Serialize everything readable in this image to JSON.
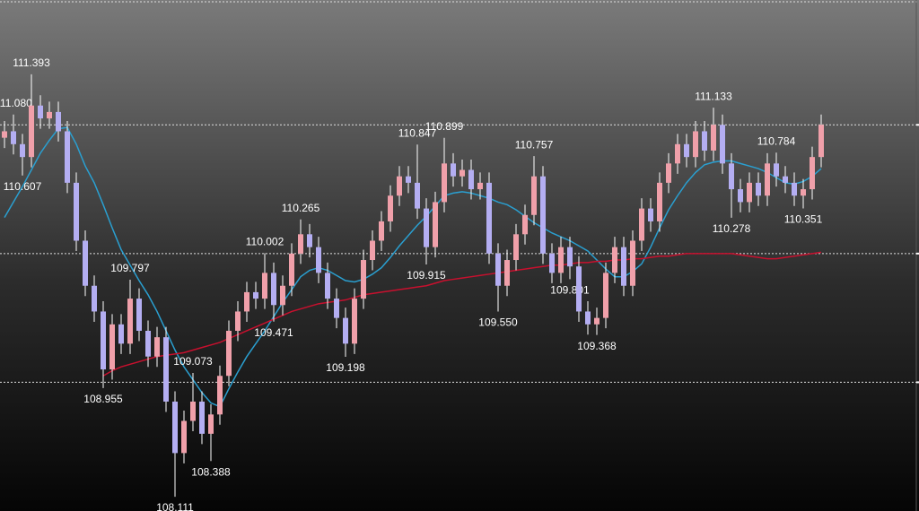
{
  "chart_data": {
    "type": "candlestick",
    "ylim": [
      108.0,
      111.97
    ],
    "yticks": [
      109,
      110,
      111
    ],
    "grid": true,
    "up_color": "#f0a0aa",
    "down_color": "#b4aef2",
    "wick_color": "#ffffff",
    "open": [
      110.9,
      110.95,
      110.85,
      110.75,
      111.15,
      111.05,
      111.1,
      110.95,
      110.55,
      110.1,
      109.75,
      109.55,
      109.1,
      109.45,
      109.3,
      109.65,
      109.4,
      109.2,
      109.35,
      108.85,
      108.45,
      108.7,
      108.85,
      108.6,
      108.75,
      109.05,
      109.4,
      109.55,
      109.7,
      109.65,
      109.85,
      109.6,
      109.75,
      110.0,
      110.15,
      110.05,
      109.85,
      109.65,
      109.5,
      109.3,
      109.65,
      109.95,
      110.1,
      110.25,
      110.45,
      110.6,
      110.55,
      110.35,
      110.05,
      110.4,
      110.7,
      110.6,
      110.65,
      110.5,
      110.55,
      110.0,
      109.75,
      109.95,
      110.15,
      110.3,
      110.6,
      110.0,
      109.85,
      110.05,
      109.9,
      109.55,
      109.45,
      109.5,
      109.85,
      110.05,
      109.75,
      110.1,
      110.35,
      110.25,
      110.55,
      110.7,
      110.85,
      110.75,
      110.95,
      110.8,
      111.0,
      110.7,
      110.5,
      110.4,
      110.55,
      110.45,
      110.7,
      110.6,
      110.55,
      110.45,
      110.5,
      110.75
    ],
    "high": [
      111.03,
      111.08,
      110.93,
      111.393,
      111.23,
      111.18,
      111.18,
      111.03,
      110.63,
      110.18,
      109.83,
      109.63,
      109.53,
      109.53,
      109.797,
      109.73,
      109.48,
      109.43,
      109.43,
      108.93,
      108.78,
      109.073,
      108.93,
      108.83,
      109.13,
      109.48,
      109.63,
      109.78,
      109.78,
      110.002,
      109.93,
      109.83,
      110.08,
      110.265,
      110.23,
      110.13,
      109.93,
      109.73,
      109.58,
      109.73,
      110.03,
      110.18,
      110.33,
      110.53,
      110.68,
      110.68,
      110.847,
      110.43,
      110.48,
      110.899,
      110.78,
      110.73,
      110.73,
      110.63,
      110.63,
      110.08,
      110.03,
      110.23,
      110.38,
      110.757,
      110.68,
      110.08,
      110.13,
      110.13,
      109.98,
      109.63,
      109.58,
      109.93,
      110.13,
      110.13,
      110.18,
      110.43,
      110.43,
      110.63,
      110.78,
      110.93,
      110.93,
      111.03,
      111.03,
      111.133,
      111.08,
      110.78,
      110.58,
      110.63,
      110.63,
      110.78,
      110.784,
      110.68,
      110.63,
      110.58,
      110.83,
      111.08
    ],
    "low": [
      110.82,
      110.77,
      110.607,
      110.67,
      110.97,
      110.97,
      110.87,
      110.47,
      110.02,
      109.67,
      109.47,
      108.955,
      109.02,
      109.22,
      109.22,
      109.32,
      109.12,
      109.12,
      108.77,
      108.111,
      108.37,
      108.62,
      108.52,
      108.388,
      108.67,
      108.97,
      109.32,
      109.47,
      109.57,
      109.57,
      109.471,
      109.52,
      109.67,
      109.92,
      109.97,
      109.77,
      109.57,
      109.42,
      109.198,
      109.22,
      109.57,
      109.87,
      110.02,
      110.17,
      110.37,
      110.47,
      110.27,
      109.915,
      109.97,
      110.32,
      110.52,
      110.52,
      110.42,
      110.42,
      109.92,
      109.55,
      109.67,
      109.87,
      110.07,
      110.22,
      109.92,
      109.77,
      109.77,
      109.801,
      109.47,
      109.37,
      109.368,
      109.42,
      109.77,
      109.67,
      109.67,
      110.02,
      110.17,
      110.17,
      110.47,
      110.62,
      110.67,
      110.67,
      110.72,
      110.72,
      110.62,
      110.278,
      110.32,
      110.32,
      110.37,
      110.37,
      110.52,
      110.47,
      110.37,
      110.351,
      110.42,
      110.67
    ],
    "close": [
      110.95,
      110.85,
      110.75,
      111.15,
      111.05,
      111.1,
      110.95,
      110.55,
      110.1,
      109.75,
      109.55,
      109.1,
      109.45,
      109.3,
      109.65,
      109.4,
      109.2,
      109.35,
      108.85,
      108.45,
      108.7,
      108.85,
      108.6,
      108.75,
      109.05,
      109.4,
      109.55,
      109.7,
      109.65,
      109.85,
      109.6,
      109.75,
      110.0,
      110.15,
      110.05,
      109.85,
      109.65,
      109.5,
      109.3,
      109.65,
      109.95,
      110.1,
      110.25,
      110.45,
      110.6,
      110.55,
      110.35,
      110.05,
      110.4,
      110.7,
      110.6,
      110.65,
      110.5,
      110.55,
      110.0,
      109.75,
      109.95,
      110.15,
      110.3,
      110.6,
      110.0,
      109.85,
      110.05,
      109.9,
      109.55,
      109.45,
      109.5,
      109.85,
      110.05,
      109.75,
      110.1,
      110.35,
      110.25,
      110.55,
      110.7,
      110.85,
      110.75,
      110.95,
      110.8,
      111.0,
      110.7,
      110.5,
      110.4,
      110.55,
      110.45,
      110.7,
      110.6,
      110.55,
      110.45,
      110.5,
      110.75,
      111.0
    ],
    "high_labels": [
      null,
      "111.080",
      null,
      "111.393",
      null,
      null,
      null,
      null,
      null,
      null,
      null,
      null,
      null,
      null,
      "109.797",
      null,
      null,
      null,
      null,
      null,
      null,
      "109.073",
      null,
      null,
      null,
      null,
      null,
      null,
      null,
      "110.002",
      null,
      null,
      null,
      "110.265",
      null,
      null,
      null,
      null,
      null,
      null,
      null,
      null,
      null,
      null,
      null,
      null,
      "110.847",
      null,
      null,
      "110.899",
      null,
      null,
      null,
      null,
      null,
      null,
      null,
      null,
      null,
      "110.757",
      null,
      null,
      null,
      null,
      null,
      null,
      null,
      null,
      null,
      null,
      null,
      null,
      null,
      null,
      null,
      null,
      null,
      null,
      null,
      "111.133",
      null,
      null,
      null,
      null,
      null,
      null,
      "110.784",
      null,
      null,
      null,
      null,
      null
    ],
    "low_labels": [
      null,
      null,
      "110.607",
      null,
      null,
      null,
      null,
      null,
      null,
      null,
      null,
      "108.955",
      null,
      null,
      null,
      null,
      null,
      null,
      null,
      "108.111",
      null,
      null,
      null,
      "108.388",
      null,
      null,
      null,
      null,
      null,
      null,
      "109.471",
      null,
      null,
      null,
      null,
      null,
      null,
      null,
      "109.198",
      null,
      null,
      null,
      null,
      null,
      null,
      null,
      null,
      "109.915",
      null,
      null,
      null,
      null,
      null,
      null,
      null,
      "109.550",
      null,
      null,
      null,
      null,
      null,
      null,
      null,
      "109.801",
      null,
      null,
      "109.368",
      null,
      null,
      null,
      null,
      null,
      null,
      null,
      null,
      null,
      null,
      null,
      null,
      null,
      null,
      "110.278",
      null,
      null,
      null,
      null,
      null,
      null,
      null,
      "110.351",
      null,
      null
    ],
    "moving_averages": [
      {
        "color": "#2a9fd0",
        "values": [
          110.28,
          110.4,
          110.52,
          110.65,
          110.78,
          110.88,
          110.97,
          110.98,
          110.85,
          110.68,
          110.55,
          110.38,
          110.2,
          110.03,
          109.91,
          109.79,
          109.68,
          109.55,
          109.4,
          109.25,
          109.12,
          109.02,
          108.92,
          108.84,
          108.81,
          108.95,
          109.08,
          109.2,
          109.3,
          109.4,
          109.51,
          109.62,
          109.72,
          109.82,
          109.87,
          109.89,
          109.87,
          109.83,
          109.79,
          109.78,
          109.8,
          109.84,
          109.89,
          109.97,
          110.06,
          110.14,
          110.22,
          110.29,
          110.37,
          110.45,
          110.47,
          110.48,
          110.47,
          110.45,
          110.43,
          110.4,
          110.38,
          110.34,
          110.29,
          110.24,
          110.2,
          110.16,
          110.13,
          110.1,
          110.06,
          110.02,
          109.95,
          109.88,
          109.82,
          109.82,
          109.86,
          109.92,
          110.05,
          110.2,
          110.34,
          110.45,
          110.55,
          110.63,
          110.69,
          110.71,
          110.72,
          110.72,
          110.7,
          110.68,
          110.66,
          110.63,
          110.59,
          110.55,
          110.54,
          110.56,
          110.6,
          110.66
        ]
      },
      {
        "color": "#c8102e",
        "values": [
          null,
          null,
          null,
          null,
          null,
          null,
          null,
          null,
          null,
          null,
          null,
          109.05,
          109.09,
          109.12,
          109.14,
          109.16,
          109.18,
          109.2,
          109.21,
          109.22,
          109.23,
          109.25,
          109.27,
          109.29,
          109.31,
          109.34,
          109.37,
          109.4,
          109.43,
          109.46,
          109.49,
          109.52,
          109.55,
          109.57,
          109.59,
          109.61,
          109.62,
          109.63,
          109.64,
          109.66,
          109.68,
          109.69,
          109.7,
          109.71,
          109.72,
          109.73,
          109.74,
          109.75,
          109.77,
          109.79,
          109.8,
          109.81,
          109.82,
          109.83,
          109.84,
          109.85,
          109.86,
          109.87,
          109.88,
          109.89,
          109.9,
          109.91,
          109.91,
          109.92,
          109.93,
          109.93,
          109.94,
          109.94,
          109.95,
          109.95,
          109.96,
          109.96,
          109.97,
          109.98,
          109.98,
          109.99,
          110.0,
          110.0,
          110.0,
          110.0,
          110.0,
          110.0,
          109.99,
          109.98,
          109.97,
          109.96,
          109.96,
          109.97,
          109.98,
          109.99,
          110.0,
          110.01
        ]
      }
    ]
  }
}
